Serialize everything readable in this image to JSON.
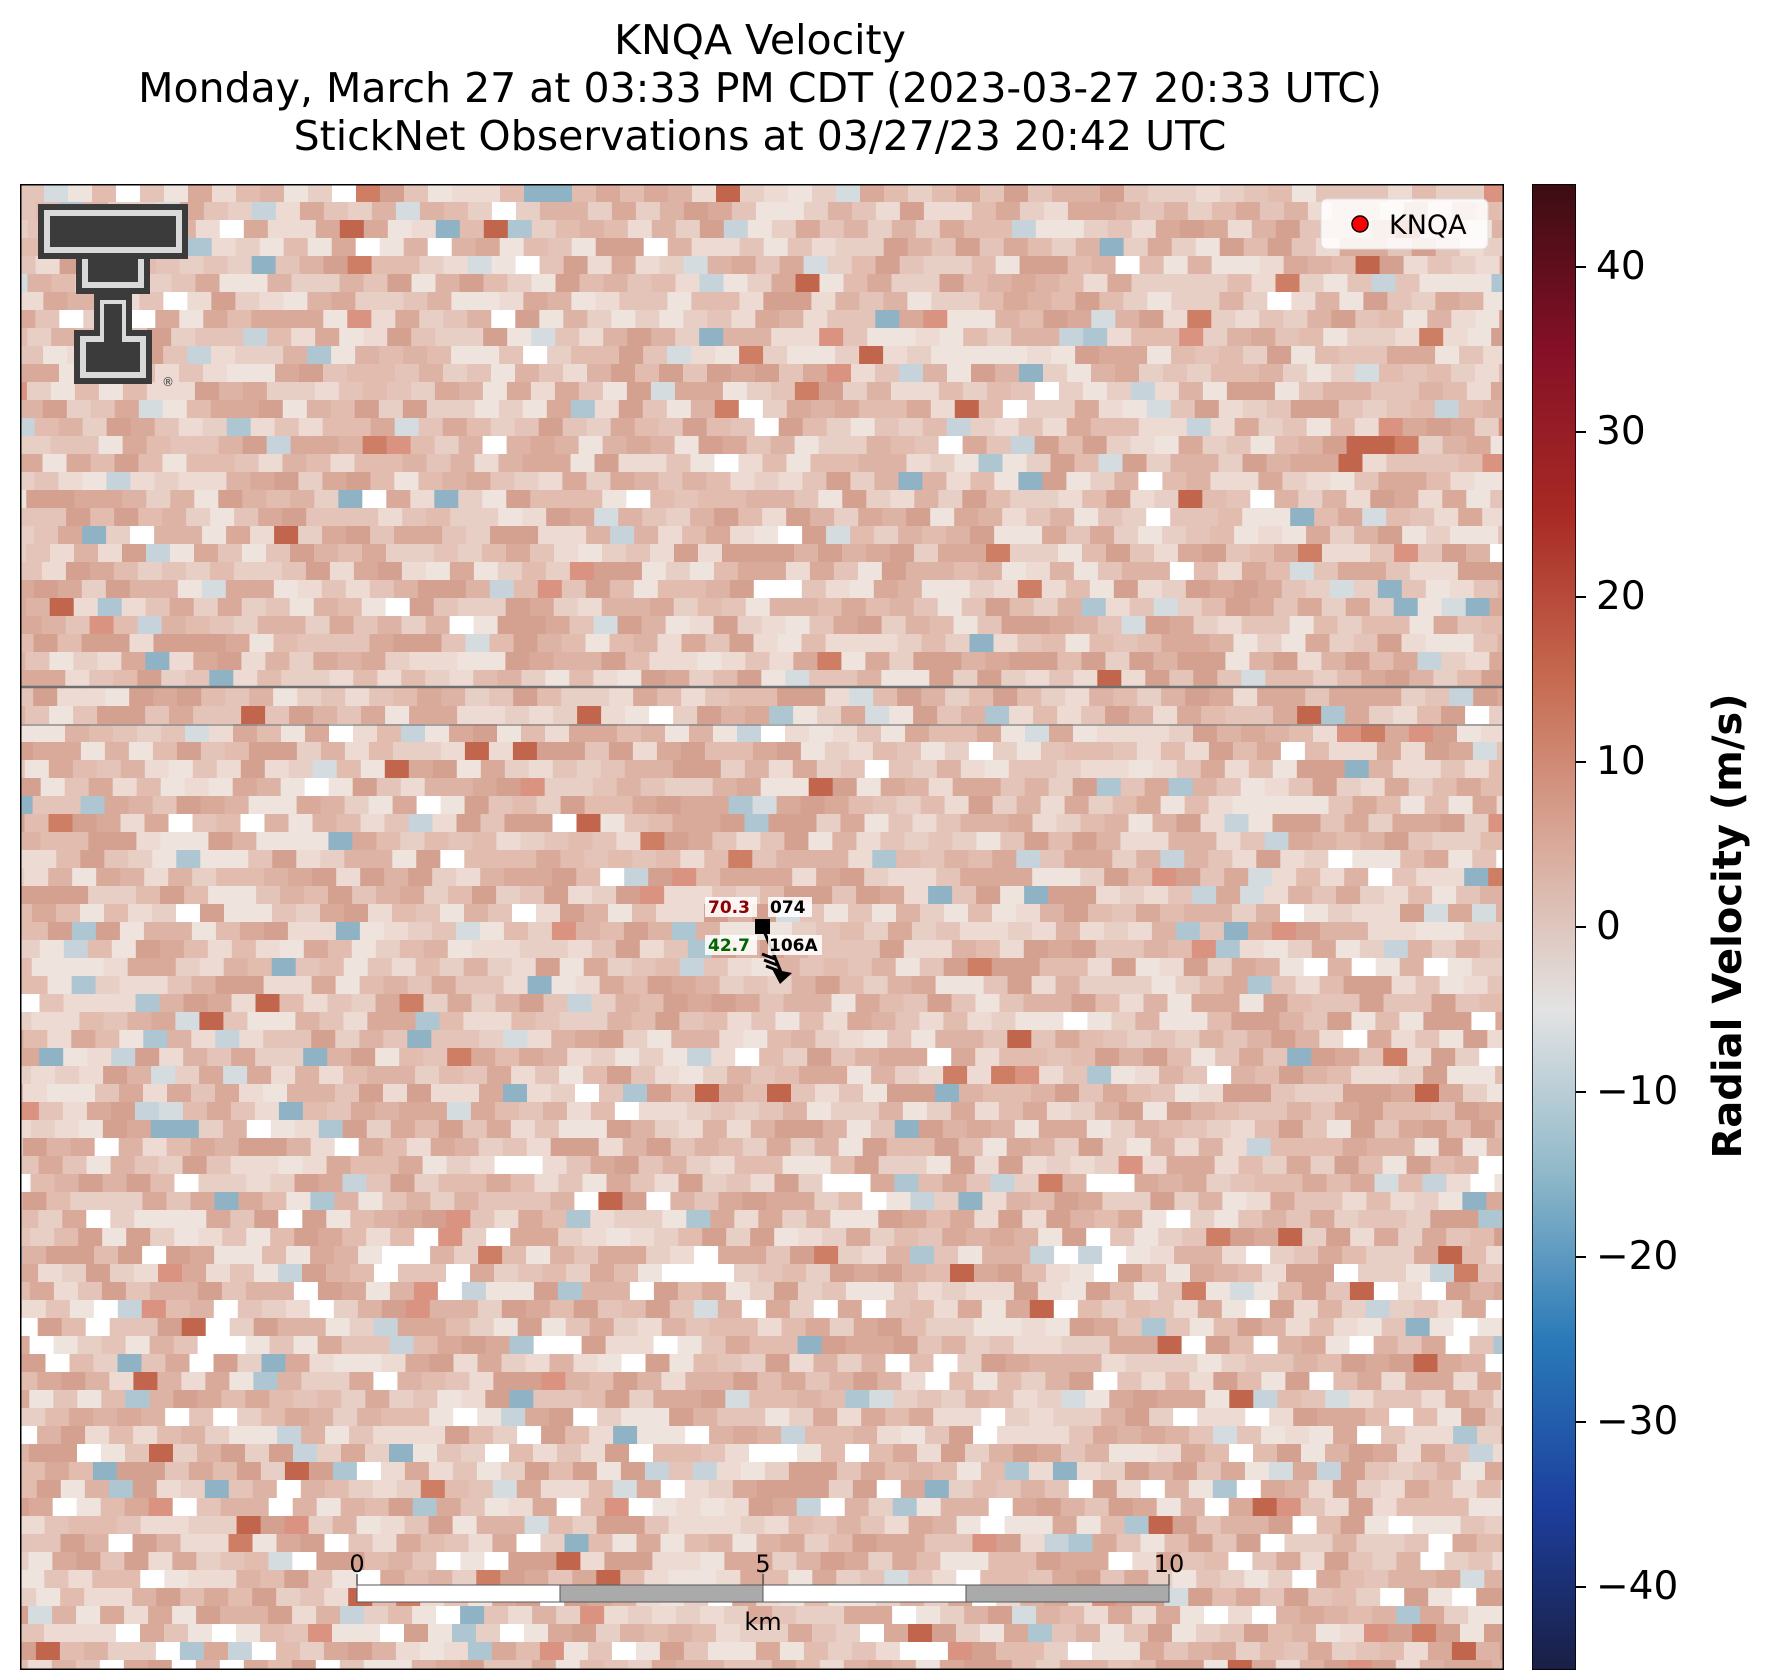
{
  "title": {
    "line1": "KNQA Velocity",
    "line2": "Monday, March 27 at 03:33 PM CDT (2023-03-27 20:33 UTC)",
    "line3": "StickNet Observations at 03/27/23 20:42 UTC"
  },
  "legend": {
    "label": "KNQA",
    "marker_color": "#ff0000",
    "placement": "upper-right"
  },
  "logo": {
    "name": "Texas Tech double-T logo",
    "text": "®"
  },
  "stations": [
    {
      "id": "074",
      "temperature": "70.3",
      "dewpoint": "42.7",
      "second_id": "106A",
      "temp_color": "#8b0000",
      "dew_color": "#006400"
    }
  ],
  "scale_bar": {
    "ticks": [
      "0",
      "5",
      "10"
    ],
    "unit": "km"
  },
  "colorbar": {
    "label": "Radial Velocity (m/s)",
    "range": [
      -45,
      45
    ],
    "ticks": [
      40,
      30,
      20,
      10,
      0,
      -10,
      -20,
      -30,
      -40
    ],
    "tick_labels": [
      "40",
      "30",
      "20",
      "10",
      "0",
      "−10",
      "−20",
      "−30",
      "−40"
    ],
    "colors": [
      "#1a1f44",
      "#1c3f9e",
      "#2a7ab8",
      "#8fb8c9",
      "#e3e3e3",
      "#d9a99a",
      "#c66a50",
      "#a82a24",
      "#851027",
      "#3b0d12"
    ]
  },
  "chart_data": {
    "type": "heatmap",
    "field": "Radial Velocity (m/s)",
    "value_range": [
      -45,
      45
    ],
    "dominant_values_ms": [
      3,
      12
    ],
    "notes_values": {
      "min_visible": -18,
      "max_visible": 22
    }
  }
}
